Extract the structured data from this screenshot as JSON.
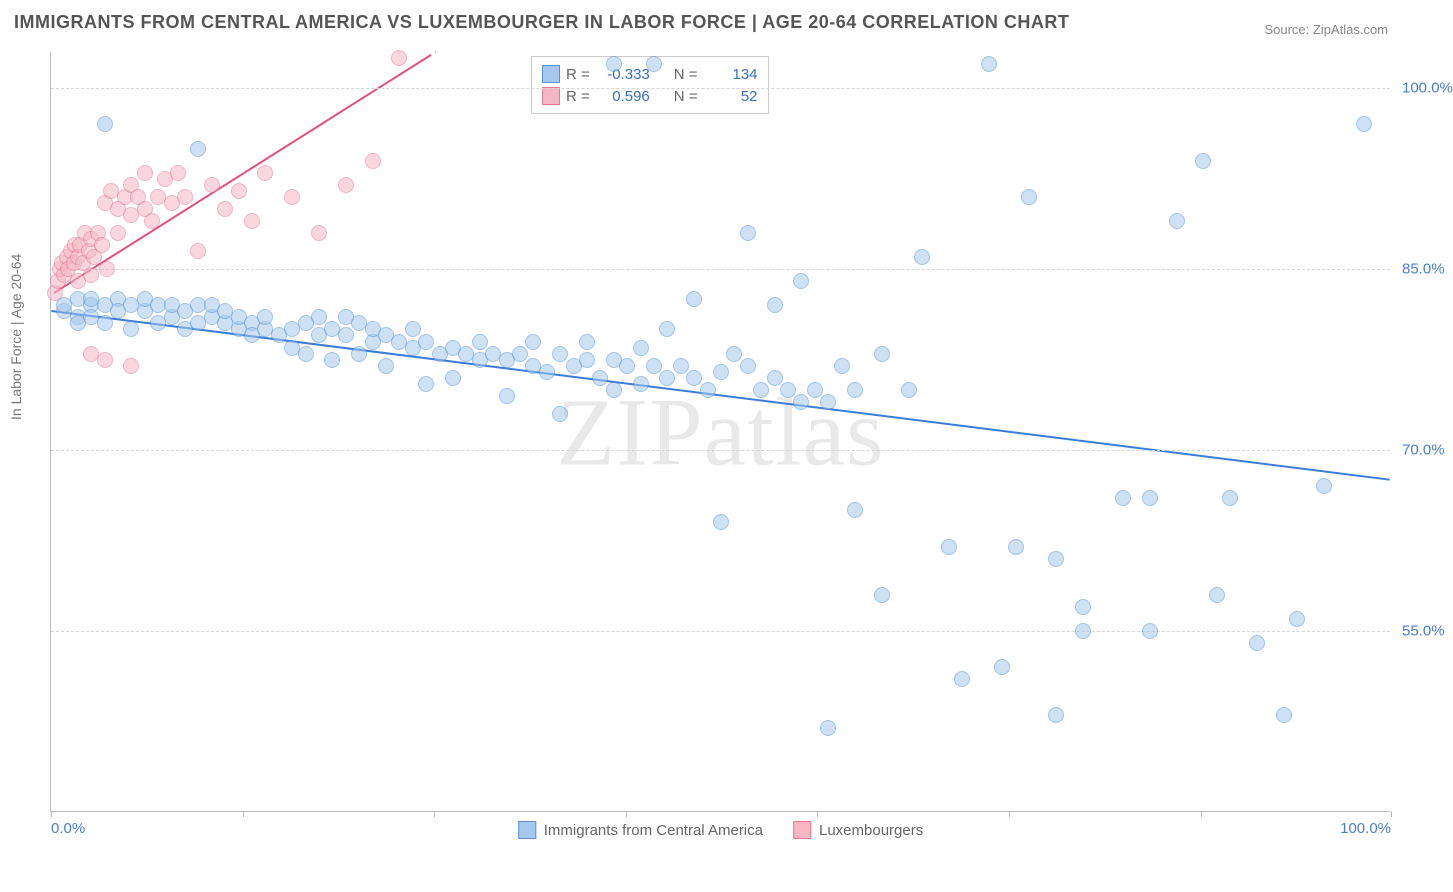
{
  "title": "IMMIGRANTS FROM CENTRAL AMERICA VS LUXEMBOURGER IN LABOR FORCE | AGE 20-64 CORRELATION CHART",
  "source": "Source: ZipAtlas.com",
  "watermark": "ZIPatlas",
  "y_axis": {
    "label": "In Labor Force | Age 20-64",
    "min": 40,
    "max": 103,
    "ticks": [
      55.0,
      70.0,
      85.0,
      100.0
    ],
    "tick_labels": [
      "55.0%",
      "70.0%",
      "85.0%",
      "100.0%"
    ]
  },
  "x_axis": {
    "min": 0,
    "max": 100,
    "ticks": [
      0,
      14.3,
      28.6,
      42.9,
      57.2,
      71.5,
      85.8,
      100
    ],
    "min_label": "0.0%",
    "max_label": "100.0%"
  },
  "series": {
    "blue": {
      "name": "Immigrants from Central America",
      "fill": "#a6c8ec",
      "stroke": "#5a94d6",
      "fill_opacity": 0.55,
      "radius": 8,
      "R": "-0.333",
      "N": "134",
      "line": {
        "x1": 0,
        "y1": 81.5,
        "x2": 100,
        "y2": 67.5,
        "color": "#3b7dd8",
        "width": 2
      },
      "points": [
        [
          1,
          81.5
        ],
        [
          1,
          82
        ],
        [
          2,
          82.5
        ],
        [
          2,
          81
        ],
        [
          2,
          80.5
        ],
        [
          3,
          82
        ],
        [
          3,
          81
        ],
        [
          3,
          82.5
        ],
        [
          4,
          82
        ],
        [
          4,
          80.5
        ],
        [
          5,
          82.5
        ],
        [
          5,
          81.5
        ],
        [
          6,
          82
        ],
        [
          6,
          80
        ],
        [
          7,
          81.5
        ],
        [
          7,
          82.5
        ],
        [
          8,
          82
        ],
        [
          8,
          80.5
        ],
        [
          9,
          81
        ],
        [
          9,
          82
        ],
        [
          10,
          81.5
        ],
        [
          10,
          80
        ],
        [
          11,
          82
        ],
        [
          11,
          80.5
        ],
        [
          12,
          81
        ],
        [
          12,
          82
        ],
        [
          13,
          80.5
        ],
        [
          13,
          81.5
        ],
        [
          14,
          80
        ],
        [
          14,
          81
        ],
        [
          15,
          80.5
        ],
        [
          15,
          79.5
        ],
        [
          16,
          80
        ],
        [
          16,
          81
        ],
        [
          17,
          79.5
        ],
        [
          18,
          80
        ],
        [
          18,
          78.5
        ],
        [
          19,
          80.5
        ],
        [
          19,
          78
        ],
        [
          20,
          79.5
        ],
        [
          20,
          81
        ],
        [
          21,
          80
        ],
        [
          21,
          77.5
        ],
        [
          22,
          79.5
        ],
        [
          22,
          81
        ],
        [
          23,
          78
        ],
        [
          23,
          80.5
        ],
        [
          24,
          79
        ],
        [
          24,
          80
        ],
        [
          25,
          79.5
        ],
        [
          25,
          77
        ],
        [
          26,
          79
        ],
        [
          27,
          78.5
        ],
        [
          27,
          80
        ],
        [
          28,
          79
        ],
        [
          28,
          75.5
        ],
        [
          29,
          78
        ],
        [
          30,
          78.5
        ],
        [
          30,
          76
        ],
        [
          31,
          78
        ],
        [
          32,
          77.5
        ],
        [
          32,
          79
        ],
        [
          33,
          78
        ],
        [
          34,
          77.5
        ],
        [
          34,
          74.5
        ],
        [
          35,
          78
        ],
        [
          36,
          77
        ],
        [
          36,
          79
        ],
        [
          37,
          76.5
        ],
        [
          38,
          78
        ],
        [
          38,
          73
        ],
        [
          39,
          77
        ],
        [
          40,
          77.5
        ],
        [
          40,
          79
        ],
        [
          41,
          76
        ],
        [
          42,
          77.5
        ],
        [
          42,
          75
        ],
        [
          43,
          77
        ],
        [
          44,
          75.5
        ],
        [
          44,
          78.5
        ],
        [
          45,
          77
        ],
        [
          46,
          76
        ],
        [
          46,
          80
        ],
        [
          47,
          77
        ],
        [
          48,
          76
        ],
        [
          48,
          82.5
        ],
        [
          49,
          75
        ],
        [
          50,
          76.5
        ],
        [
          50,
          64
        ],
        [
          51,
          78
        ],
        [
          52,
          77
        ],
        [
          52,
          88
        ],
        [
          53,
          75
        ],
        [
          54,
          76
        ],
        [
          54,
          82
        ],
        [
          55,
          75
        ],
        [
          56,
          74
        ],
        [
          56,
          84
        ],
        [
          57,
          75
        ],
        [
          58,
          74
        ],
        [
          58,
          47
        ],
        [
          59,
          77
        ],
        [
          60,
          75
        ],
        [
          60,
          65
        ],
        [
          62,
          78
        ],
        [
          62,
          58
        ],
        [
          64,
          75
        ],
        [
          65,
          86
        ],
        [
          67,
          62
        ],
        [
          68,
          51
        ],
        [
          70,
          102
        ],
        [
          71,
          52
        ],
        [
          72,
          62
        ],
        [
          73,
          91
        ],
        [
          75,
          48
        ],
        [
          75,
          61
        ],
        [
          77,
          57
        ],
        [
          77,
          55
        ],
        [
          80,
          66
        ],
        [
          82,
          66
        ],
        [
          82,
          55
        ],
        [
          84,
          89
        ],
        [
          86,
          94
        ],
        [
          87,
          58
        ],
        [
          88,
          66
        ],
        [
          90,
          54
        ],
        [
          92,
          48
        ],
        [
          93,
          56
        ],
        [
          95,
          67
        ],
        [
          98,
          97
        ],
        [
          42,
          102
        ],
        [
          45,
          102
        ],
        [
          4,
          97
        ],
        [
          11,
          95
        ]
      ]
    },
    "pink": {
      "name": "Luxembourgers",
      "fill": "#f6b7c5",
      "stroke": "#e57a96",
      "fill_opacity": 0.55,
      "radius": 8,
      "R": "0.596",
      "N": "52",
      "line": {
        "x1": 0.2,
        "y1": 83,
        "x2": 28,
        "y2": 102.5,
        "color": "#e0517b",
        "width": 2
      },
      "line_dash": {
        "x1": 28,
        "y1": 102.5,
        "x2": 36,
        "y2": 108
      },
      "points": [
        [
          0.3,
          83
        ],
        [
          0.5,
          84
        ],
        [
          0.7,
          85
        ],
        [
          0.8,
          85.5
        ],
        [
          1,
          84.5
        ],
        [
          1.2,
          86
        ],
        [
          1.3,
          85
        ],
        [
          1.5,
          86.5
        ],
        [
          1.7,
          85.5
        ],
        [
          1.8,
          87
        ],
        [
          2,
          84
        ],
        [
          2,
          86
        ],
        [
          2.2,
          87
        ],
        [
          2.4,
          85.5
        ],
        [
          2.5,
          88
        ],
        [
          2.8,
          86.5
        ],
        [
          3,
          87.5
        ],
        [
          3,
          84.5
        ],
        [
          3.2,
          86
        ],
        [
          3.5,
          88
        ],
        [
          3.8,
          87
        ],
        [
          4,
          90.5
        ],
        [
          4.2,
          85
        ],
        [
          4.5,
          91.5
        ],
        [
          5,
          88
        ],
        [
          5,
          90
        ],
        [
          5.5,
          91
        ],
        [
          6,
          89.5
        ],
        [
          6,
          92
        ],
        [
          6.5,
          91
        ],
        [
          7,
          90
        ],
        [
          7,
          93
        ],
        [
          7.5,
          89
        ],
        [
          8,
          91
        ],
        [
          8.5,
          92.5
        ],
        [
          9,
          90.5
        ],
        [
          9.5,
          93
        ],
        [
          10,
          91
        ],
        [
          11,
          86.5
        ],
        [
          12,
          92
        ],
        [
          13,
          90
        ],
        [
          14,
          91.5
        ],
        [
          15,
          89
        ],
        [
          16,
          93
        ],
        [
          18,
          91
        ],
        [
          20,
          88
        ],
        [
          22,
          92
        ],
        [
          24,
          94
        ],
        [
          26,
          102.5
        ],
        [
          3,
          78
        ],
        [
          4,
          77.5
        ],
        [
          6,
          77
        ]
      ]
    }
  },
  "stats_legend": {
    "r_label": "R =",
    "n_label": "N ="
  },
  "bottom_legend": {
    "blue_label": "Immigrants from Central America",
    "pink_label": "Luxembourgers"
  },
  "colors": {
    "blue_swatch_fill": "#a6c8ec",
    "blue_swatch_stroke": "#5a94d6",
    "pink_swatch_fill": "#f6b7c5",
    "pink_swatch_stroke": "#e57a96"
  }
}
